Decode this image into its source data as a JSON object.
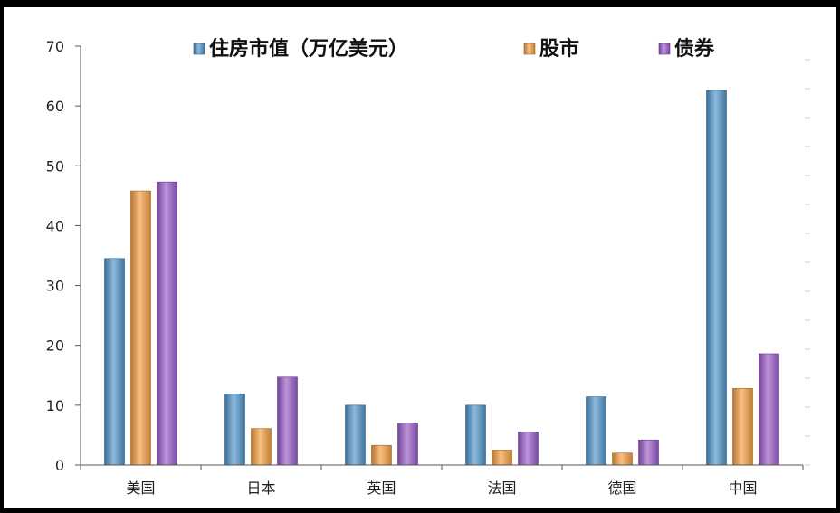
{
  "chart_data": {
    "type": "bar",
    "title": "",
    "xlabel": "",
    "ylabel": "",
    "ylim": [
      0,
      70
    ],
    "yticks": [
      0,
      10,
      20,
      30,
      40,
      50,
      60,
      70
    ],
    "grid": false,
    "legend_position": "top",
    "categories": [
      "美国",
      "日本",
      "英国",
      "法国",
      "德国",
      "中国"
    ],
    "series": [
      {
        "name": "住房市值（万亿美元）",
        "color": "#4f93c8",
        "values": [
          34.5,
          11.9,
          10.0,
          10.0,
          11.4,
          62.6
        ]
      },
      {
        "name": "股市",
        "color": "#f59d3e",
        "values": [
          45.8,
          6.1,
          3.3,
          2.5,
          2.0,
          12.8
        ]
      },
      {
        "name": "债券",
        "color": "#9a5bc9",
        "values": [
          47.3,
          14.7,
          7.0,
          5.5,
          4.2,
          18.6
        ]
      }
    ]
  }
}
